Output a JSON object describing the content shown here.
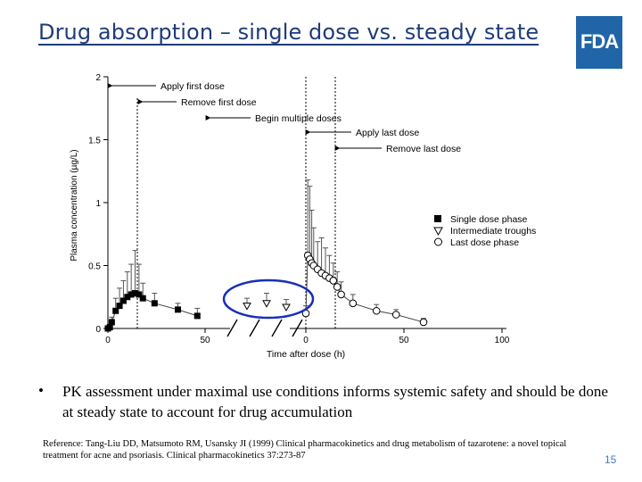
{
  "slide": {
    "title": "Drug absorption – single dose vs. steady state",
    "logo_text": "FDA",
    "bullet_marker": "•",
    "bullet_text": "PK assessment under maximal use conditions informs systemic safety and should be done at steady state to account for drug accumulation",
    "reference": "Reference: Tang-Liu DD, Matsumoto RM, Usansky JI (1999) Clinical pharmacokinetics and drug metabolism of tazarotene: a novel topical treatment for acne and psoriasis. Clinical pharmacokinetics 37:273-87",
    "page_number": "15",
    "colors": {
      "title": "#1f3b7a",
      "logo_bg": "#1f65a8",
      "highlight_ellipse": "#1a2fb8",
      "page_number": "#4a7ab8"
    }
  },
  "chart_data": {
    "type": "scatter",
    "xlabel": "Time after dose (h)",
    "ylabel": "Plasma concentration (µg/L)",
    "ylim": [
      0,
      2
    ],
    "y_ticks": [
      "0",
      "0.5",
      "1",
      "1.5",
      "2"
    ],
    "x_ticks_left": [
      "0",
      "50"
    ],
    "x_ticks_right": [
      "0",
      "50",
      "100"
    ],
    "annotations": [
      "Apply first dose",
      "Remove first dose",
      "Begin multiple doses",
      "Apply last dose",
      "Remove last dose"
    ],
    "legend_position": "right",
    "series": [
      {
        "name": "Single dose phase",
        "marker": "filled-square",
        "x": [
          0,
          1,
          2,
          4,
          6,
          8,
          10,
          12,
          14,
          16,
          18,
          24,
          36,
          46
        ],
        "y": [
          0.0,
          0.01,
          0.05,
          0.14,
          0.18,
          0.22,
          0.25,
          0.27,
          0.28,
          0.27,
          0.24,
          0.2,
          0.15,
          0.1
        ],
        "err": [
          0.0,
          0.02,
          0.04,
          0.1,
          0.14,
          0.16,
          0.2,
          0.24,
          0.34,
          0.24,
          0.12,
          0.08,
          0.05,
          0.06
        ]
      },
      {
        "name": "Intermediate troughs",
        "marker": "open-triangle-down",
        "x": [
          -30,
          -20,
          -10
        ],
        "y": [
          0.18,
          0.2,
          0.17
        ],
        "err": [
          0.06,
          0.08,
          0.06
        ]
      },
      {
        "name": "Last dose phase",
        "marker": "open-circle",
        "x": [
          0,
          1,
          2,
          3,
          4,
          6,
          8,
          10,
          12,
          14,
          16,
          18,
          24,
          36,
          46,
          60
        ],
        "y": [
          0.12,
          0.58,
          0.55,
          0.52,
          0.5,
          0.47,
          0.44,
          0.42,
          0.4,
          0.38,
          0.33,
          0.27,
          0.2,
          0.14,
          0.11,
          0.05
        ],
        "err": [
          0.06,
          0.6,
          0.58,
          0.42,
          0.3,
          0.22,
          0.28,
          0.22,
          0.18,
          0.14,
          0.12,
          0.1,
          0.07,
          0.05,
          0.04,
          0.03
        ]
      }
    ]
  }
}
